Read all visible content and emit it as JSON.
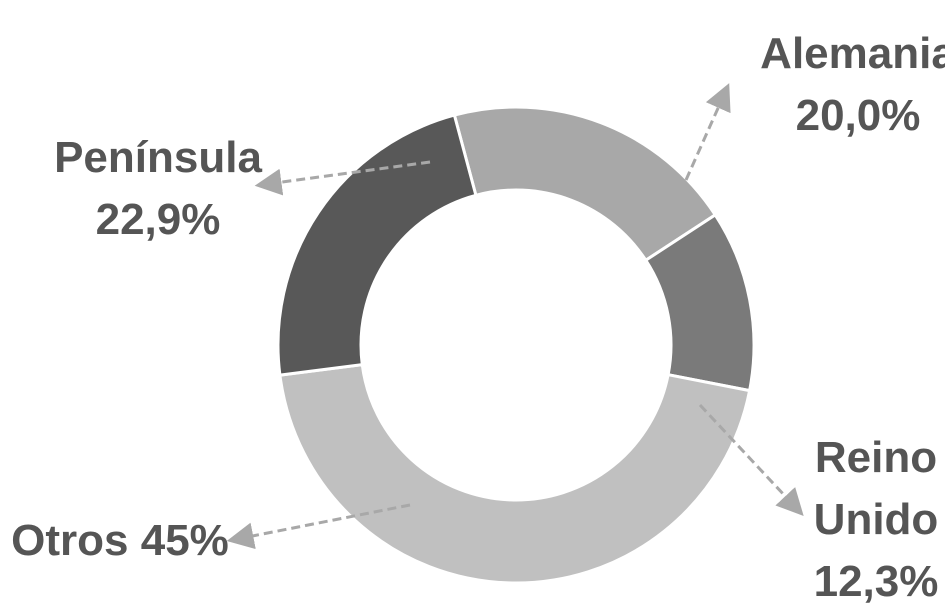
{
  "chart_data": {
    "type": "pie",
    "donut": true,
    "title": "",
    "slices": [
      {
        "name": "Alemania",
        "label_lines": [
          "Alemania",
          "20,0%"
        ],
        "value": 20.0,
        "color": "#a8a8a8"
      },
      {
        "name": "Reino Unido",
        "label_lines": [
          "Reino",
          "Unido",
          "12,3%"
        ],
        "value": 12.3,
        "color": "#7a7a7a"
      },
      {
        "name": "Otros",
        "label_lines": [
          "Otros 45%"
        ],
        "value": 45.0,
        "color": "#c0c0c0"
      },
      {
        "name": "Península",
        "label_lines": [
          "Península",
          "22,9%"
        ],
        "value": 22.9,
        "color": "#585858"
      }
    ],
    "legend": "none",
    "label_style": "outside-with-dashed-arrows"
  }
}
